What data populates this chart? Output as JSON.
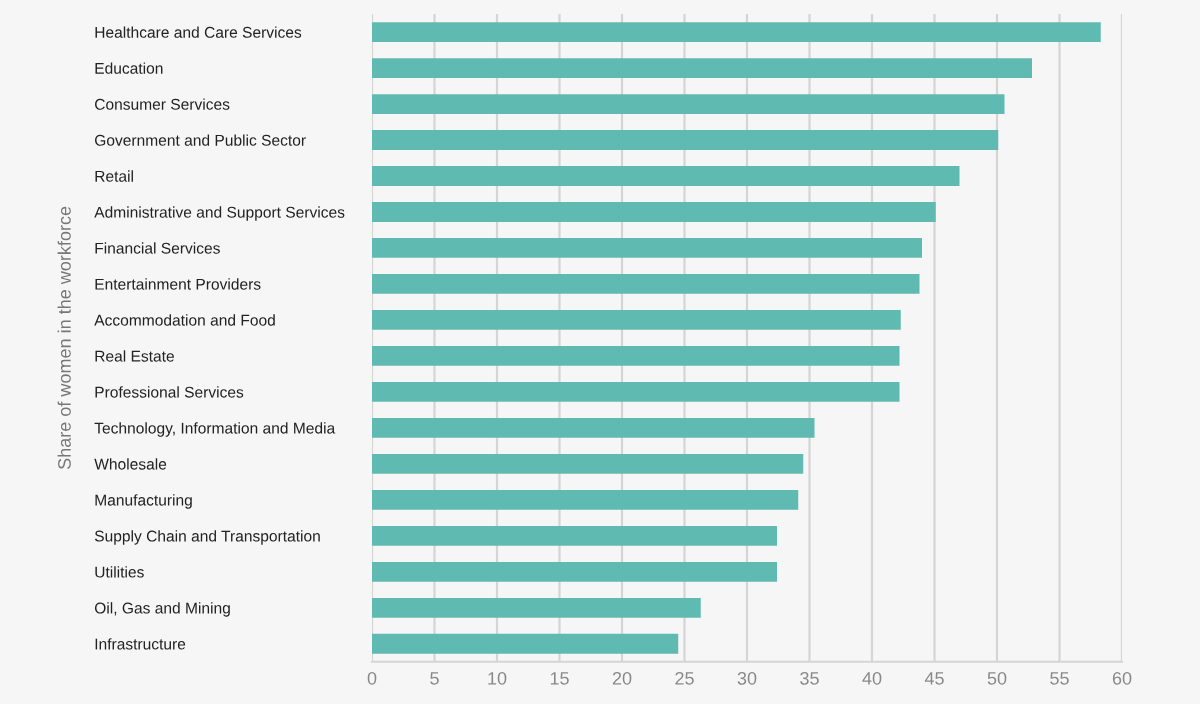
{
  "chart_data": {
    "type": "bar",
    "orientation": "horizontal",
    "ylabel": "Share of women in the workforce",
    "categories": [
      "Healthcare and Care Services",
      "Education",
      "Consumer Services",
      "Government and Public Sector",
      "Retail",
      "Administrative and Support Services",
      "Financial Services",
      "Entertainment Providers",
      "Accommodation and Food",
      "Real Estate",
      "Professional Services",
      "Technology, Information and Media",
      "Wholesale",
      "Manufacturing",
      "Supply Chain and Transportation",
      "Utilities",
      "Oil, Gas and Mining",
      "Infrastructure"
    ],
    "values": [
      58.3,
      52.8,
      50.6,
      50.1,
      47.0,
      45.1,
      44.0,
      43.8,
      42.3,
      42.2,
      42.2,
      35.4,
      34.5,
      34.1,
      32.4,
      32.4,
      26.3,
      24.5
    ],
    "color": "#5fbab1",
    "xlim": [
      0,
      60
    ],
    "xticks": [
      0,
      5,
      10,
      15,
      20,
      25,
      30,
      35,
      40,
      45,
      50,
      55,
      60
    ],
    "grid": "x"
  }
}
